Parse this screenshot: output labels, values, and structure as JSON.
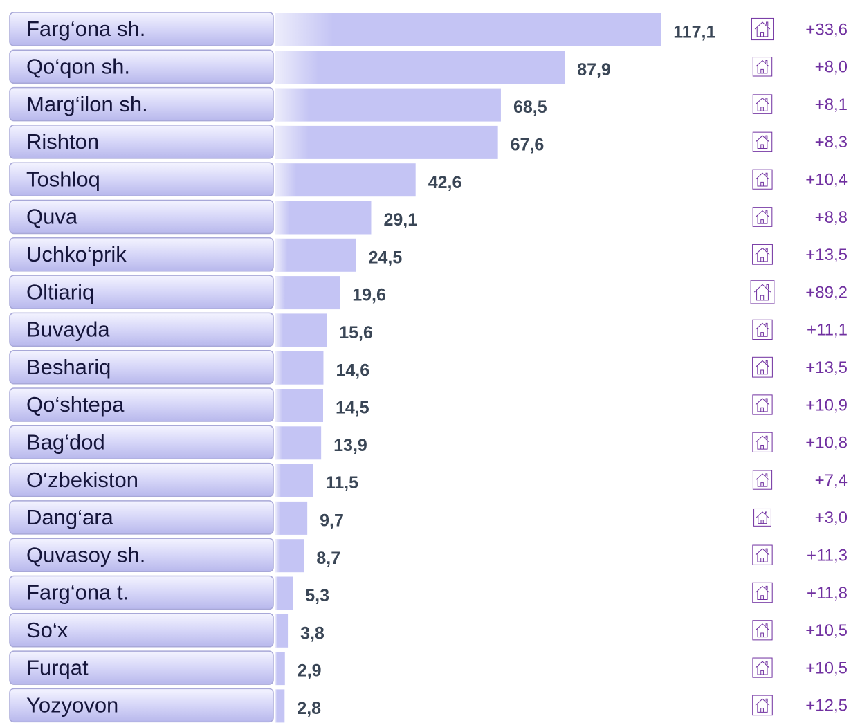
{
  "chart_data": {
    "type": "bar",
    "orientation": "horizontal",
    "categories": [
      "Farg‘ona sh.",
      "Qo‘qon sh.",
      "Marg‘ilon sh.",
      "Rishton",
      "Toshloq",
      "Quva",
      "Uchko‘prik",
      "Oltiariq",
      "Buvayda",
      "Beshariq",
      "Qo‘shtepa",
      "Bag‘dod",
      "O‘zbekiston",
      "Dang‘ara",
      "Quvasoy sh.",
      "Farg‘ona t.",
      "So‘x",
      "Furqat",
      "Yozyovon"
    ],
    "values": [
      117.1,
      87.9,
      68.5,
      67.6,
      42.6,
      29.1,
      24.5,
      19.6,
      15.6,
      14.6,
      14.5,
      13.9,
      11.5,
      9.7,
      8.7,
      5.3,
      3.8,
      2.9,
      2.8
    ],
    "value_labels": [
      "117,1",
      "87,9",
      "68,5",
      "67,6",
      "42,6",
      "29,1",
      "24,5",
      "19,6",
      "15,6",
      "14,6",
      "14,5",
      "13,9",
      "11,5",
      "9,7",
      "8,7",
      "5,3",
      "3,8",
      "2,9",
      "2,8"
    ],
    "color": "#c4c4f4",
    "xlim": [
      0,
      120
    ],
    "changes": {
      "values": [
        33.6,
        8.0,
        8.1,
        8.3,
        10.4,
        8.8,
        13.5,
        89.2,
        11.1,
        13.5,
        10.9,
        10.8,
        7.4,
        3.0,
        11.3,
        11.8,
        10.5,
        10.5,
        12.5
      ],
      "value_labels": [
        "+33,6",
        "+8,0",
        "+8,1",
        "+8,3",
        "+10,4",
        "+8,8",
        "+13,5",
        "+89,2",
        "+11,1",
        "+13,5",
        "+10,9",
        "+10,8",
        "+7,4",
        "+3,0",
        "+11,3",
        "+11,8",
        "+10,5",
        "+10,5",
        "+12,5"
      ],
      "color": "#7030a0"
    }
  }
}
